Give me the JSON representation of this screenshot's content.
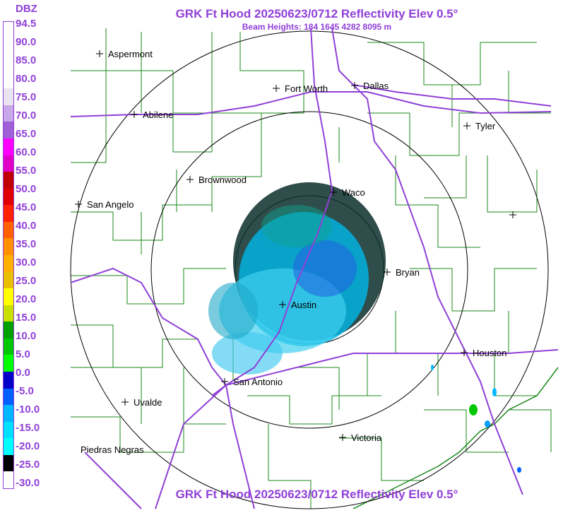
{
  "header": {
    "title": "GRK Ft Hood 20250623/0712 Reflectivity Elev 0.5°",
    "beam_heights": "Beam Heights: 184 1645 4282 8095 m",
    "footer_title": "GRK Ft Hood 20250623/0712 Reflectivity Elev 0.5°"
  },
  "legend": {
    "unit": "DBZ",
    "ticks": [
      "94.5",
      "90.0",
      "85.0",
      "80.0",
      "75.0",
      "70.0",
      "65.0",
      "60.0",
      "55.0",
      "50.0",
      "45.0",
      "40.0",
      "35.0",
      "30.0",
      "25.0",
      "20.0",
      "15.0",
      "10.0",
      "5.0",
      "0.0",
      "-5.0",
      "-10.0",
      "-15.0",
      "-20.0",
      "-25.0",
      "-30.0"
    ],
    "colors": [
      "#ffffff",
      "#ffffff",
      "#ffffff",
      "#ffffff",
      "#eae4f2",
      "#c8a8e8",
      "#a060d8",
      "#ff00ff",
      "#e000c8",
      "#c00000",
      "#e00000",
      "#ff2000",
      "#ff6000",
      "#ff9000",
      "#ffb000",
      "#e8c000",
      "#ffff00",
      "#c8e000",
      "#00a000",
      "#00c800",
      "#00ff00",
      "#0000c8",
      "#0060ff",
      "#00b8ff",
      "#00e0ff",
      "#00ffff",
      "#000000",
      "#ffffff"
    ]
  },
  "map": {
    "radar_site": "Ft Hood",
    "cities": [
      {
        "name": "Aspermont"
      },
      {
        "name": "Fort Worth"
      },
      {
        "name": "Dallas"
      },
      {
        "name": "Abilene"
      },
      {
        "name": "Tyler"
      },
      {
        "name": "Brownwood"
      },
      {
        "name": "Waco"
      },
      {
        "name": "San Angelo"
      },
      {
        "name": "Bryan"
      },
      {
        "name": "Austin"
      },
      {
        "name": "Houston"
      },
      {
        "name": "San Antonio"
      },
      {
        "name": "Uvalde"
      },
      {
        "name": "Victoria"
      },
      {
        "name": "Piedras Negras"
      }
    ],
    "colors": {
      "highways": "#9040d8",
      "counties": "#1a8a1a",
      "range_rings": "#000000",
      "echo_light": "#00c8ff",
      "echo_dark": "#0a2e2a"
    }
  }
}
